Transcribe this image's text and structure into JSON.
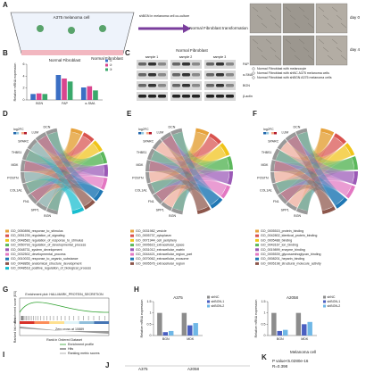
{
  "panel_a": {
    "label": "A",
    "cell": "A375 melanoma cell",
    "fibroblast": "Normal Fibroblast",
    "arrow": "shBGN in melanoma cell co-culture",
    "result": "Normal Fibroblast transformation",
    "days": [
      "day 0",
      "day 4"
    ],
    "legend": [
      "Normal Fibroblast with melanocyte",
      "Normal Fibroblast with shNC A375 melanoma cells",
      "Normal Fibroblast with shBGN A375 melanoma cells"
    ]
  },
  "panel_b": {
    "label": "B",
    "chart": {
      "type": "bar",
      "title": "Normal Fibroblast",
      "ylabel": "Relative mRNA expression",
      "categories": [
        "BGN",
        "FAP",
        "α-SMA"
      ],
      "series": [
        {
          "name": "①",
          "color": "#3b6fc4",
          "values": [
            1,
            4.2,
            2.1
          ]
        },
        {
          "name": "②",
          "color": "#d9468f",
          "values": [
            1.1,
            3.6,
            2.3
          ]
        },
        {
          "name": "③",
          "color": "#3aa86b",
          "values": [
            1,
            3.1,
            1.6
          ]
        }
      ],
      "ylim": [
        0,
        6
      ],
      "yticks": [
        0,
        2,
        4,
        6
      ]
    }
  },
  "panel_c": {
    "label": "C",
    "title": "Normal Fibroblast",
    "samples": [
      "sample 1",
      "sample 2",
      "sample 3"
    ],
    "proteins": [
      "FAP",
      "α-SMA",
      "BGN",
      "β-actin"
    ]
  },
  "panel_d": {
    "label": "D",
    "scale": "log2FC",
    "genes": [
      "BGN",
      "SPP1",
      "FN1",
      "COL1A1",
      "POSTN",
      "MDK",
      "THBS1",
      "SPARC",
      "LUM",
      "DCN"
    ],
    "terms": [
      "GO_0050896_response_to_stimulus",
      "GO_0051239_regulation_of_signaling",
      "GO_0048583_regulation_of_response_to_stimulus",
      "GO_0050793_regulation_of_developmental_process",
      "GO_0048731_system_development",
      "GO_0032502_developmental_process",
      "GO_0010033_response_to_organic_substance",
      "GO_0048856_anatomical_structure_development",
      "GO_0048518_positive_regulation_of_biological_process"
    ]
  },
  "panel_e": {
    "label": "E",
    "scale": "log2FC",
    "genes": [
      "BGN",
      "SPP1",
      "FN1",
      "COL1A1",
      "POSTN",
      "MDK",
      "THBS1",
      "SPARC",
      "LUM",
      "DCN"
    ],
    "terms": [
      "GO_0031982_vesicle",
      "GO_0005737_cytoplasm",
      "GO_0071944_cell_periphery",
      "GO_0005615_extracellular_space",
      "GO_0031012_extracellular_matrix",
      "GO_0044421_extracellular_region_part",
      "GO_0070062_extracellular_exosome",
      "GO_0005576_extracellular_region"
    ]
  },
  "panel_f": {
    "label": "F",
    "scale": "log2FC",
    "genes": [
      "BGN",
      "SPP1",
      "FN1",
      "COL1A1",
      "POSTN",
      "MDK",
      "THBS1",
      "SPARC",
      "LUM",
      "DCN"
    ],
    "terms": [
      "GO_0005515_protein_binding",
      "GO_0042802_identical_protein_binding",
      "GO_0005488_binding",
      "GO_0043167_ion_binding",
      "GO_0019899_enzyme_binding",
      "GO_0005539_glycosaminoglycan_binding",
      "GO_0008201_heparin_binding",
      "GO_0005198_structural_molecule_activity"
    ]
  },
  "panel_g": {
    "label": "G",
    "title": "Enrichment plot: HALLMARK_PROTEIN_SECRETION",
    "es": "Enrichment score (ES)",
    "metric": "Ranked list metric",
    "zero": "Zero cross at 10889",
    "xlabel": "Rank in Ordered Dataset",
    "legend": [
      "Enrichment profile",
      "Hits",
      "Ranking metric scores"
    ]
  },
  "panel_h": {
    "label": "H",
    "charts": [
      {
        "type": "bar",
        "title": "A375",
        "ylabel": "Relative mRNA expression",
        "categories": [
          "BGN",
          "MDK"
        ],
        "series": [
          {
            "name": "shNC",
            "color": "#8c8c8c",
            "values": [
              1,
              1
            ]
          },
          {
            "name": "shBGN-1",
            "color": "#4a5fc1",
            "values": [
              0.15,
              0.45
            ]
          },
          {
            "name": "shBGN-2",
            "color": "#6fb7e6",
            "values": [
              0.2,
              0.55
            ]
          }
        ],
        "ylim": [
          0,
          1.5
        ],
        "yticks": [
          0,
          0.5,
          1,
          1.5
        ]
      },
      {
        "type": "bar",
        "title": "A2058",
        "ylabel": "Relative mRNA expression",
        "categories": [
          "BGN",
          "MDK"
        ],
        "series": [
          {
            "name": "shNC",
            "color": "#8c8c8c",
            "values": [
              1,
              1
            ]
          },
          {
            "name": "shBGN-1",
            "color": "#4a5fc1",
            "values": [
              0.2,
              0.5
            ]
          },
          {
            "name": "shBGN-2",
            "color": "#6fb7e6",
            "values": [
              0.25,
              0.6
            ]
          }
        ],
        "ylim": [
          0,
          1.5
        ],
        "yticks": [
          0,
          0.5,
          1,
          1.5
        ]
      }
    ]
  },
  "panel_i": {
    "label": "I"
  },
  "panel_j": {
    "label": "J",
    "cells": [
      "A375",
      "A2058"
    ]
  },
  "panel_k": {
    "label": "K",
    "title": "Melanoma cell",
    "p": "P value<5.0280e-16",
    "r": "R=0.398"
  }
}
